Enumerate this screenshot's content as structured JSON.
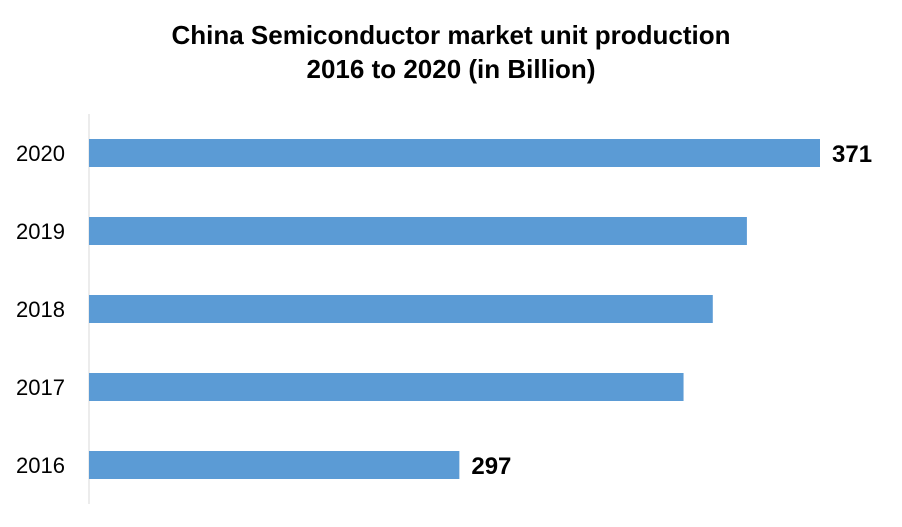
{
  "chart_data": {
    "type": "bar",
    "orientation": "horizontal",
    "title_lines": [
      "China Semiconductor market unit production",
      "2016 to 2020 (in Billion)"
    ],
    "categories": [
      "2020",
      "2019",
      "2018",
      "2017",
      "2016"
    ],
    "values": [
      371,
      356,
      349,
      343,
      297
    ],
    "data_labels": {
      "2020": "371",
      "2016": "297"
    },
    "bar_color": "#5B9BD5",
    "axis_color": "#D9D9D9",
    "xlim": [
      221,
      371
    ],
    "grid": false,
    "legend": "none"
  }
}
